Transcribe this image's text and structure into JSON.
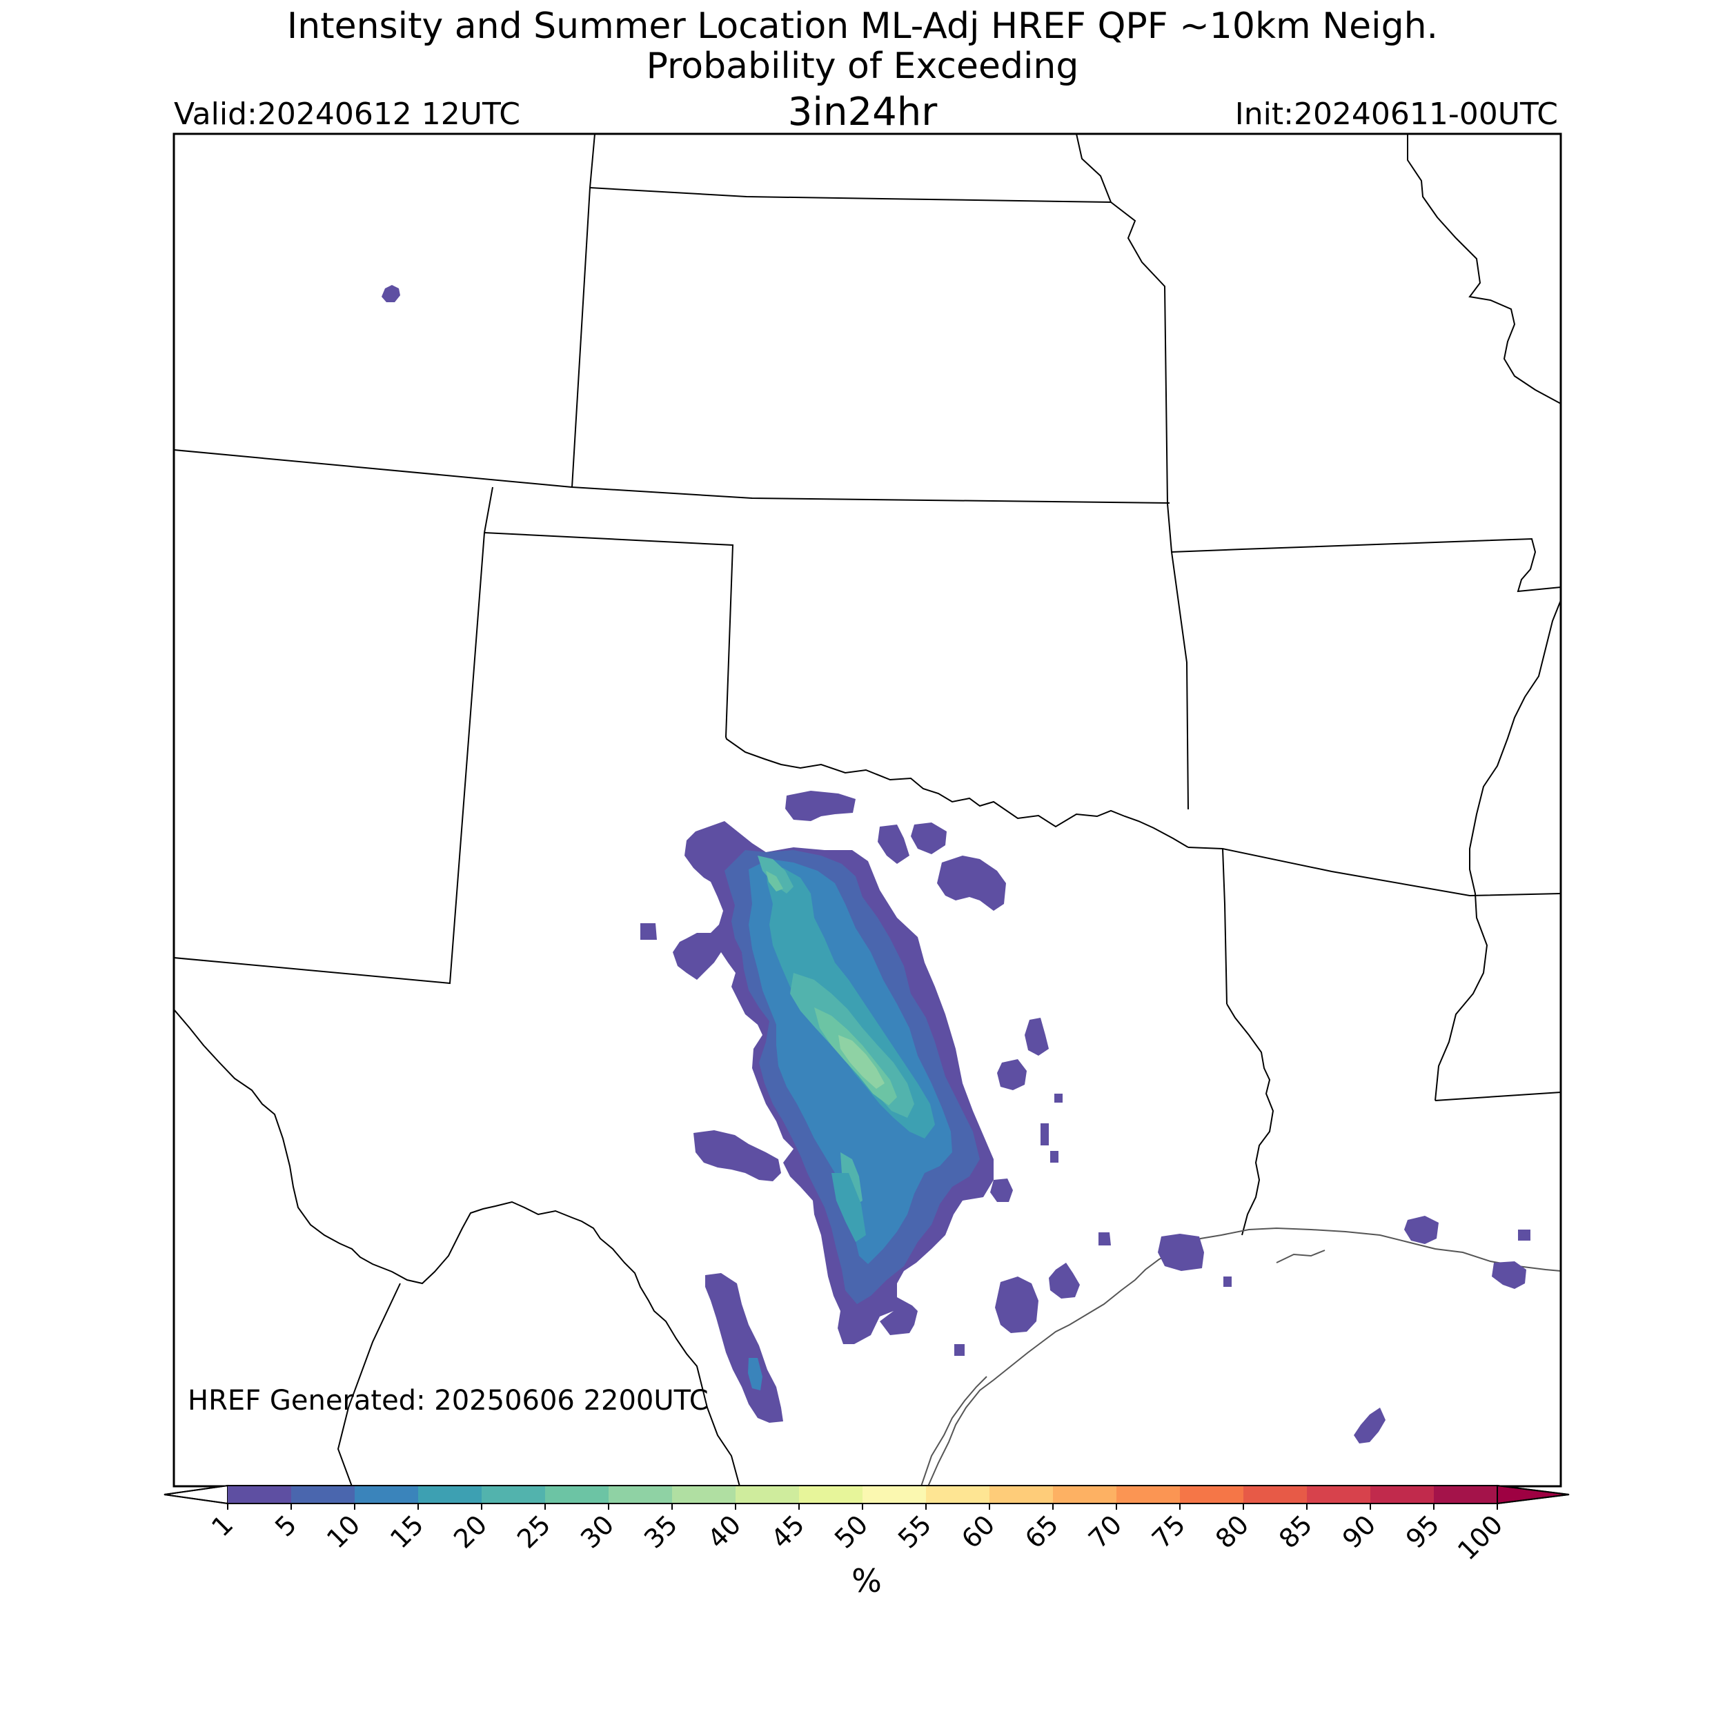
{
  "header": {
    "title_line1": "Intensity and Summer Location ML-Adj HREF QPF ~10km Neigh.",
    "title_line2": "Probability of Exceeding",
    "title_line3": "3in24hr",
    "valid": "Valid:20240612 12UTC",
    "init": "Init:20240611-00UTC"
  },
  "map": {
    "generated": "HREF Generated: 20250606 2200UTC",
    "background_color": "#ffffff",
    "border_color": "#000000",
    "coast_color": "#555555"
  },
  "colorbar": {
    "unit": "%",
    "ticks": [
      "1",
      "5",
      "10",
      "15",
      "20",
      "25",
      "30",
      "35",
      "40",
      "45",
      "50",
      "55",
      "60",
      "65",
      "70",
      "75",
      "80",
      "85",
      "90",
      "95",
      "100"
    ],
    "colors": [
      "#5e4fa2",
      "#4a66ae",
      "#3a84bb",
      "#3da0b2",
      "#52b3ad",
      "#6cc4a4",
      "#8fd2a4",
      "#b0dfa2",
      "#cfec9d",
      "#e7f59a",
      "#fbf8b0",
      "#fee593",
      "#fecc79",
      "#fdb163",
      "#fb9553",
      "#f57647",
      "#e75a47",
      "#d7424c",
      "#c12a4c",
      "#a4134a"
    ],
    "under_color": "#ffffff",
    "over_color": "#9e0142"
  }
}
